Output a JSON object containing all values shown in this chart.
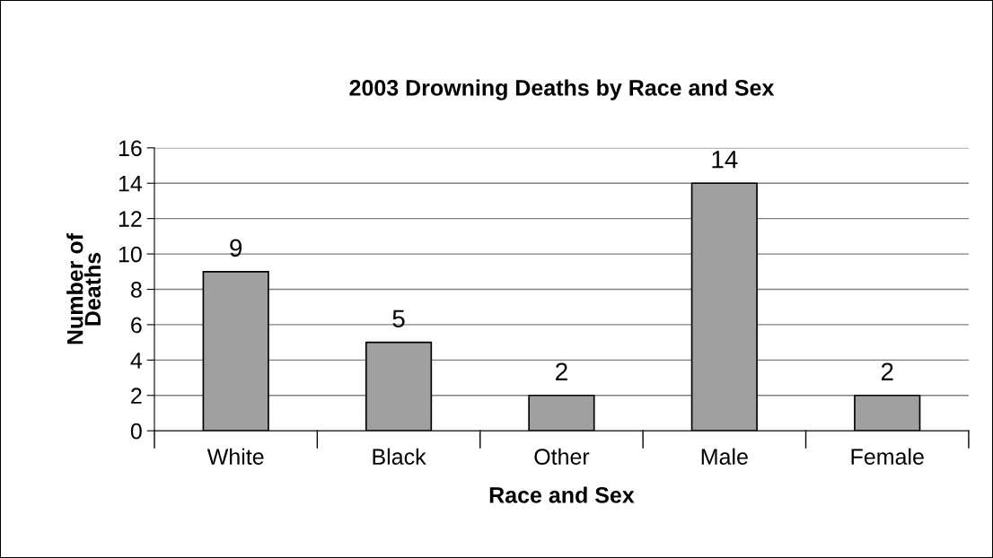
{
  "chart_data": {
    "type": "bar",
    "title": "2003 Drowning Deaths by Race and Sex",
    "xlabel": "Race and Sex",
    "ylabel": "Number of\nDeaths",
    "categories": [
      "White",
      "Black",
      "Other",
      "Male",
      "Female"
    ],
    "values": [
      9,
      5,
      2,
      14,
      2
    ],
    "color": "#a0a0a0",
    "ylim": [
      0,
      16
    ],
    "yticks": [
      0,
      2,
      4,
      6,
      8,
      10,
      12,
      14,
      16
    ],
    "grid": "y",
    "data_labels": true,
    "legend": false
  }
}
